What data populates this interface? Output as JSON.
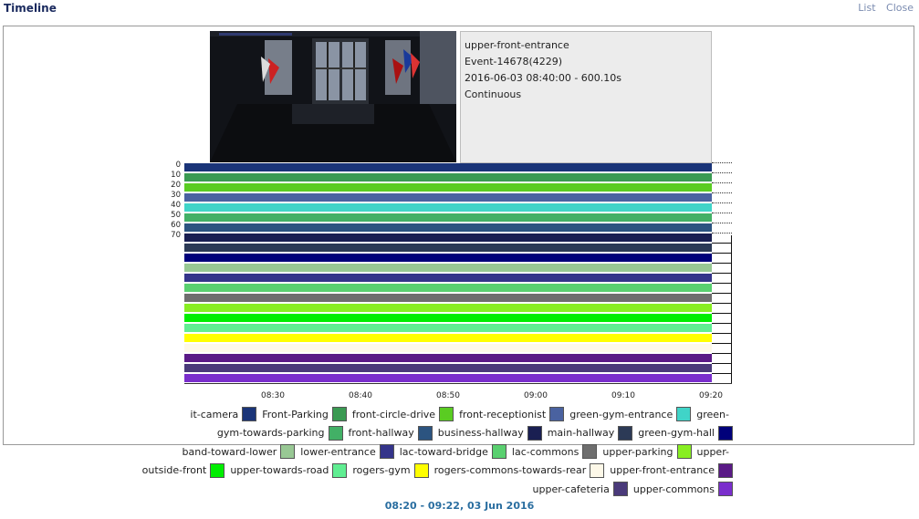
{
  "page": {
    "title": "Timeline"
  },
  "nav": {
    "list": "List",
    "close": "Close"
  },
  "event": {
    "monitor": "upper-front-entrance",
    "event_id": "Event-14678(4229)",
    "datetime": "2016-06-03 08:40:00 - 600.10s",
    "cause": "Continuous"
  },
  "score_axis": {
    "labels": [
      "0",
      "10",
      "20",
      "30",
      "40",
      "50",
      "60",
      "70"
    ]
  },
  "time_axis": {
    "labels": [
      "08:30",
      "08:40",
      "08:50",
      "09:00",
      "09:10",
      "09:20"
    ]
  },
  "time_range": "08:20 - 09:22, 03 Jun 2016",
  "chart_data": {
    "type": "bar",
    "orientation": "horizontal",
    "title": "",
    "x": [
      "08:30",
      "08:40",
      "08:50",
      "09:00",
      "09:10",
      "09:20"
    ],
    "y_ticks": [
      0,
      10,
      20,
      30,
      40,
      50,
      60,
      70
    ],
    "series": [
      {
        "name": "it-camera",
        "color": "#1a3478"
      },
      {
        "name": "Front-Parking",
        "color": "#3a9a52"
      },
      {
        "name": "front-circle-drive",
        "color": "#5acc22"
      },
      {
        "name": "front-receptionist",
        "color": "#4a62a0"
      },
      {
        "name": "green-gym-entrance",
        "color": "#40d4c8"
      },
      {
        "name": "green-gym-towards-parking",
        "color": "#42b066"
      },
      {
        "name": "front-hallway",
        "color": "#2c5480"
      },
      {
        "name": "business-hallway",
        "color": "#1a1f52"
      },
      {
        "name": "main-hallway",
        "color": "#2c3a56"
      },
      {
        "name": "green-gym-hall",
        "color": "#00007a"
      },
      {
        "name": "band-toward-lower",
        "color": "#98c894"
      },
      {
        "name": "lower-entrance",
        "color": "#34348a"
      },
      {
        "name": "lac-toward-bridge",
        "color": "#5ad070"
      },
      {
        "name": "lac-commons",
        "color": "#6e6e6e"
      },
      {
        "name": "upper-parking",
        "color": "#88ee22"
      },
      {
        "name": "upper-outside-front",
        "color": "#00ee00"
      },
      {
        "name": "upper-towards-road",
        "color": "#60ee92"
      },
      {
        "name": "rogers-gym",
        "color": "#ffff00"
      },
      {
        "name": "rogers-commons-towards-rear",
        "color": "#fdf8e8"
      },
      {
        "name": "upper-front-entrance",
        "color": "#5a1a86"
      },
      {
        "name": "upper-cafeteria",
        "color": "#4a3a7a"
      },
      {
        "name": "upper-commons",
        "color": "#7a2ecc"
      }
    ]
  },
  "legend_rows": [
    [
      "it-camera",
      "Front-Parking",
      "front-circle-drive",
      "front-receptionist",
      "green-gym-entrance",
      "green-"
    ],
    [
      "gym-towards-parking",
      "front-hallway",
      "business-hallway",
      "main-hallway",
      "green-gym-hall"
    ],
    [
      "band-toward-lower",
      "lower-entrance",
      "lac-toward-bridge",
      "lac-commons",
      "upper-parking",
      "upper-"
    ],
    [
      "outside-front",
      "upper-towards-road",
      "rogers-gym",
      "rogers-commons-towards-rear",
      "upper-front-entrance"
    ],
    [
      "upper-cafeteria",
      "upper-commons"
    ]
  ]
}
